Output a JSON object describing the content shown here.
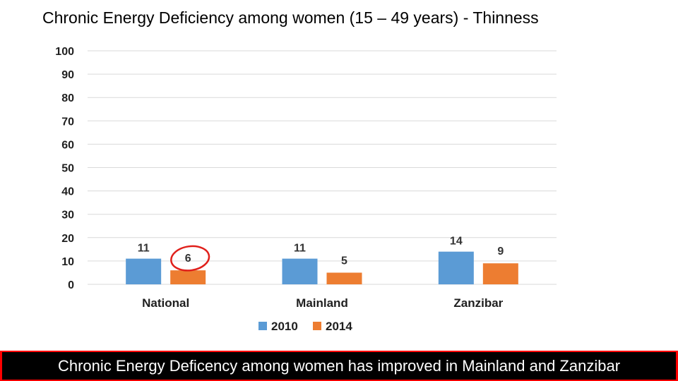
{
  "slide": {
    "title": "Chronic Energy Deficiency among women (15 – 49 years) - Thinness",
    "banner": "Chronic Energy Deficency among women has improved in Mainland and Zanzibar"
  },
  "colors": {
    "series_2010": "#5b9bd5",
    "series_2014": "#ed7d31",
    "highlight_circle": "#e0201b",
    "gridline": "#d9d9d9",
    "banner_bg": "#000000",
    "banner_border": "#ff0000"
  },
  "chart_data": {
    "type": "bar",
    "title": "Chronic Energy Deficiency among women (15 – 49 years) - Thinness",
    "xlabel": "",
    "ylabel": "",
    "categories": [
      "National",
      "Mainland",
      "Zanzibar"
    ],
    "series": [
      {
        "name": "2010",
        "values": [
          11,
          11,
          14
        ]
      },
      {
        "name": "2014",
        "values": [
          6,
          5,
          9
        ]
      }
    ],
    "data_labels": [
      [
        "11",
        "11",
        "14"
      ],
      [
        "6",
        "5",
        "9"
      ]
    ],
    "ylim": [
      0,
      100
    ],
    "yticks": [
      0,
      10,
      20,
      30,
      40,
      50,
      60,
      70,
      80,
      90,
      100
    ],
    "ytick_labels": [
      "0",
      "10",
      "20",
      "30",
      "40",
      "50",
      "60",
      "70",
      "80",
      "90",
      "100"
    ],
    "grid": true,
    "legend": "bottom",
    "annotations": [
      {
        "type": "circle",
        "category": "National",
        "series": "2014",
        "note": "hand-drawn red circle around data label"
      }
    ]
  }
}
